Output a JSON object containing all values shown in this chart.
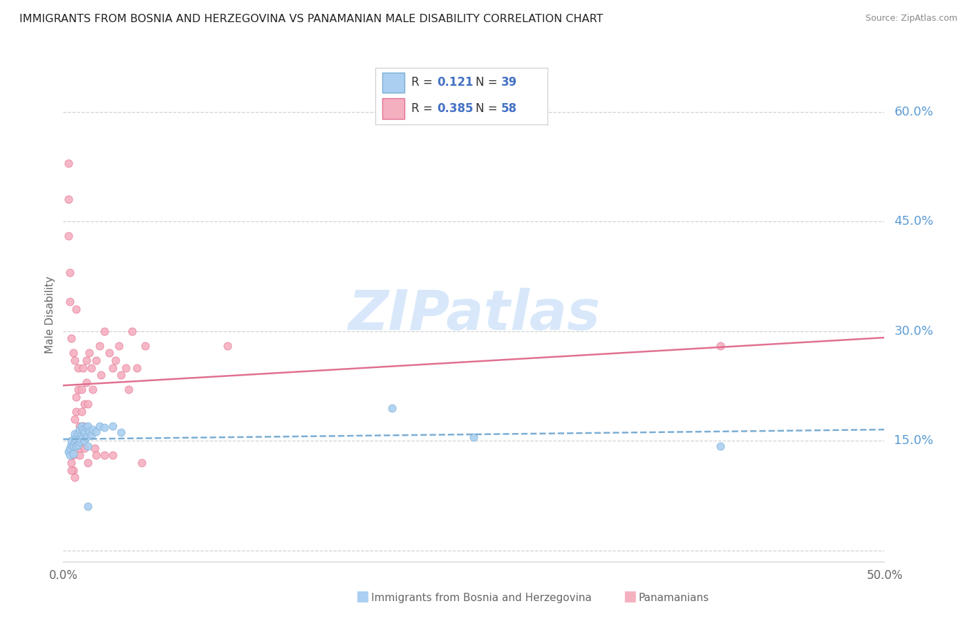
{
  "title": "IMMIGRANTS FROM BOSNIA AND HERZEGOVINA VS PANAMANIAN MALE DISABILITY CORRELATION CHART",
  "source": "Source: ZipAtlas.com",
  "ylabel": "Male Disability",
  "yticks": [
    0.0,
    0.15,
    0.3,
    0.45,
    0.6
  ],
  "ytick_labels": [
    "",
    "15.0%",
    "30.0%",
    "45.0%",
    "60.0%"
  ],
  "xtick_labels": [
    "0.0%",
    "50.0%"
  ],
  "xlim": [
    0.0,
    0.5
  ],
  "ylim": [
    -0.015,
    0.66
  ],
  "series1_label": "Immigrants from Bosnia and Herzegovina",
  "series1_R": "0.121",
  "series1_N": "39",
  "series1_dot_color": "#aacff0",
  "series1_edge_color": "#7aadd4",
  "series1_line_color": "#7aadd4",
  "series2_label": "Panamanians",
  "series2_R": "0.385",
  "series2_N": "58",
  "series2_dot_color": "#f5b0c0",
  "series2_edge_color": "#e07090",
  "series2_line_color": "#e07090",
  "watermark": "ZIPatlas",
  "watermark_color": "#c8dff8",
  "title_color": "#222222",
  "source_color": "#888888",
  "label_color": "#5b9bd5",
  "grid_color": "#cccccc",
  "axis_color": "#666666",
  "legend_text_color": "#333333",
  "legend_R_N_color": "#4472c4",
  "bg_color": "#ffffff",
  "series1_points_x": [
    0.003,
    0.004,
    0.004,
    0.005,
    0.005,
    0.006,
    0.006,
    0.007,
    0.007,
    0.007,
    0.008,
    0.008,
    0.009,
    0.009,
    0.01,
    0.01,
    0.01,
    0.011,
    0.011,
    0.012,
    0.012,
    0.013,
    0.013,
    0.014,
    0.014,
    0.015,
    0.015,
    0.016,
    0.017,
    0.018,
    0.02,
    0.022,
    0.025,
    0.03,
    0.035,
    0.2,
    0.25,
    0.4,
    0.015
  ],
  "series1_points_y": [
    0.135,
    0.13,
    0.14,
    0.145,
    0.15,
    0.132,
    0.143,
    0.155,
    0.148,
    0.16,
    0.143,
    0.152,
    0.145,
    0.16,
    0.148,
    0.153,
    0.165,
    0.158,
    0.17,
    0.155,
    0.165,
    0.15,
    0.162,
    0.155,
    0.168,
    0.143,
    0.17,
    0.163,
    0.158,
    0.165,
    0.163,
    0.17,
    0.168,
    0.17,
    0.162,
    0.195,
    0.155,
    0.143,
    0.06
  ],
  "series2_points_x": [
    0.003,
    0.003,
    0.003,
    0.004,
    0.004,
    0.005,
    0.005,
    0.005,
    0.006,
    0.006,
    0.006,
    0.007,
    0.007,
    0.007,
    0.008,
    0.008,
    0.008,
    0.009,
    0.009,
    0.009,
    0.01,
    0.01,
    0.01,
    0.011,
    0.011,
    0.012,
    0.012,
    0.013,
    0.013,
    0.014,
    0.014,
    0.015,
    0.015,
    0.016,
    0.017,
    0.018,
    0.019,
    0.02,
    0.02,
    0.022,
    0.023,
    0.025,
    0.025,
    0.028,
    0.03,
    0.03,
    0.032,
    0.034,
    0.035,
    0.038,
    0.04,
    0.042,
    0.045,
    0.048,
    0.05,
    0.1,
    0.4,
    0.005
  ],
  "series2_points_y": [
    0.43,
    0.48,
    0.53,
    0.34,
    0.38,
    0.14,
    0.12,
    0.29,
    0.11,
    0.13,
    0.27,
    0.18,
    0.1,
    0.26,
    0.19,
    0.21,
    0.33,
    0.22,
    0.16,
    0.25,
    0.17,
    0.13,
    0.14,
    0.22,
    0.19,
    0.25,
    0.17,
    0.14,
    0.2,
    0.26,
    0.23,
    0.12,
    0.2,
    0.27,
    0.25,
    0.22,
    0.14,
    0.26,
    0.13,
    0.28,
    0.24,
    0.13,
    0.3,
    0.27,
    0.13,
    0.25,
    0.26,
    0.28,
    0.24,
    0.25,
    0.22,
    0.3,
    0.25,
    0.12,
    0.28,
    0.28,
    0.28,
    0.11
  ]
}
